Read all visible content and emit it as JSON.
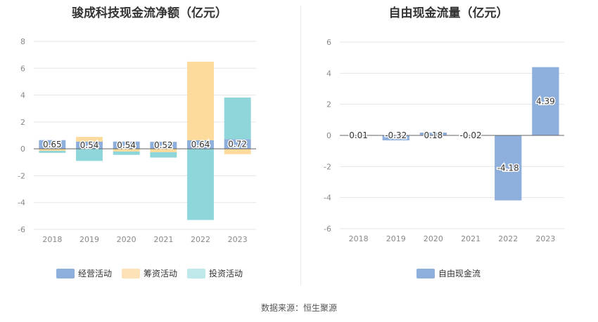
{
  "source_text": "数据来源：恒生聚源",
  "chart_data": [
    {
      "type": "bar",
      "stacked": true,
      "title": "骏成科技现金流净额（亿元）",
      "categories": [
        "2018",
        "2019",
        "2020",
        "2021",
        "2022",
        "2023"
      ],
      "ylim": [
        -6,
        8
      ],
      "yticks": [
        -6,
        -4,
        -2,
        0,
        2,
        4,
        6,
        8
      ],
      "grid": true,
      "legend_position": "bottom",
      "series": [
        {
          "name": "经营活动",
          "color": "#8eaedc",
          "values": [
            0.65,
            0.54,
            0.54,
            0.52,
            0.64,
            0.72
          ],
          "labels": [
            "0.65",
            "0.54",
            "0.54",
            "0.52",
            "0.64",
            "0.72"
          ]
        },
        {
          "name": "筹资活动",
          "color": "#fddb9c",
          "values": [
            -0.15,
            0.35,
            -0.2,
            -0.25,
            5.85,
            -0.4
          ]
        },
        {
          "name": "投资活动",
          "color": "#8fd6da",
          "values": [
            -0.15,
            -0.9,
            -0.25,
            -0.4,
            -5.3,
            3.1
          ]
        }
      ]
    },
    {
      "type": "bar",
      "title": "自由现金流量（亿元）",
      "categories": [
        "2018",
        "2019",
        "2020",
        "2021",
        "2022",
        "2023"
      ],
      "ylim": [
        -6,
        6
      ],
      "yticks": [
        -6,
        -4,
        -2,
        0,
        2,
        4,
        6
      ],
      "grid": true,
      "legend_position": "bottom",
      "series": [
        {
          "name": "自由现金流",
          "color": "#8eaedc",
          "values": [
            0.01,
            -0.32,
            0.18,
            -0.02,
            -4.18,
            4.39
          ],
          "labels": [
            "0.01",
            "-0.32",
            "0.18",
            "-0.02",
            "-4.18",
            "4.39"
          ]
        }
      ]
    }
  ]
}
